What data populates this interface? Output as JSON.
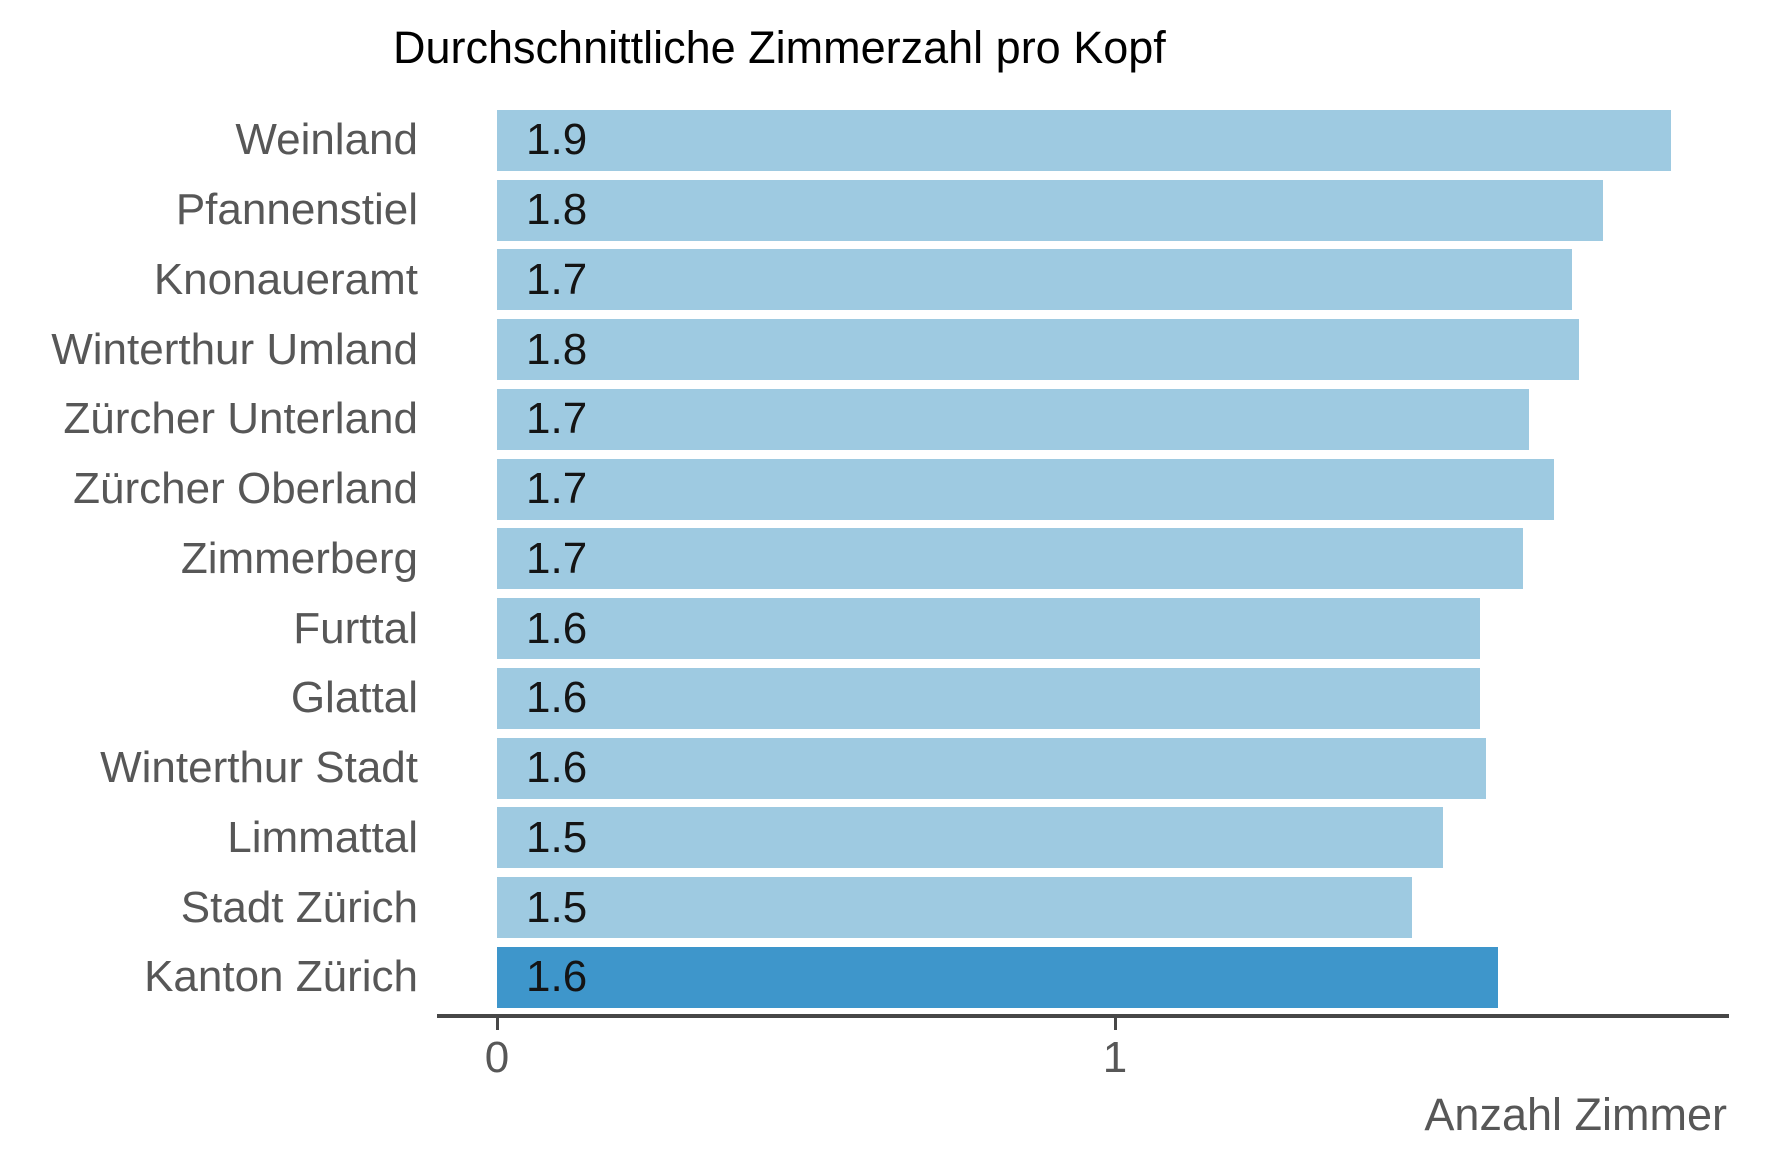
{
  "title": "Durchschnittliche Zimmerzahl pro Kopf",
  "colors": {
    "bar": "#9ECAE1",
    "bar_highlight": "#3E96CB",
    "category_label": "#575757",
    "value_label": "#141414",
    "axis": "#474747",
    "title": "#000000"
  },
  "chart_data": {
    "type": "bar",
    "orientation": "horizontal",
    "title": "Durchschnittliche Zimmerzahl pro Kopf",
    "xlabel": "Anzahl Zimmer",
    "ylabel": "",
    "xlim": [
      0,
      2
    ],
    "x_ticks": [
      0,
      1
    ],
    "grid": false,
    "legend": false,
    "categories": [
      "Weinland",
      "Pfannenstiel",
      "Knonaueramt",
      "Winterthur Umland",
      "Zürcher Unterland",
      "Zürcher Oberland",
      "Zimmerberg",
      "Furttal",
      "Glattal",
      "Winterthur Stadt",
      "Limmattal",
      "Stadt Zürich",
      "Kanton Zürich"
    ],
    "values": [
      1.9,
      1.79,
      1.74,
      1.75,
      1.67,
      1.71,
      1.66,
      1.59,
      1.59,
      1.6,
      1.53,
      1.48,
      1.62
    ],
    "value_labels": [
      "1.9",
      "1.8",
      "1.7",
      "1.8",
      "1.7",
      "1.7",
      "1.7",
      "1.6",
      "1.6",
      "1.6",
      "1.5",
      "1.5",
      "1.6"
    ],
    "highlight_index": 12,
    "highlighted_category": "Kanton Zürich"
  }
}
